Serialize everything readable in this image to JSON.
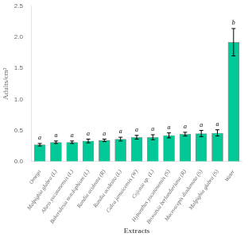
{
  "chart_data": {
    "type": "bar",
    "categories": [
      "Omega",
      "Malpighia glabra (L)",
      "Alseis yucatanensis (L)",
      "Bakeridesia notolophium (L)",
      "Randia aculeata (R)",
      "Randia aculeata (L)",
      "Calca jamaicensis (W)",
      "Cojonia sp. (L)",
      "Hybanthus yucatanensis (S)",
      "Brovatsia berlandieriana (R)",
      "Macroscepis diadamata (S)",
      "Malpighia glabra (S)",
      "Water"
    ],
    "values": [
      0.27,
      0.31,
      0.31,
      0.33,
      0.34,
      0.36,
      0.39,
      0.39,
      0.42,
      0.44,
      0.45,
      0.46,
      1.92
    ],
    "errors": [
      0.02,
      0.02,
      0.02,
      0.03,
      0.02,
      0.03,
      0.03,
      0.04,
      0.04,
      0.03,
      0.05,
      0.05,
      0.22
    ],
    "annotations": [
      "a",
      "a",
      "a",
      "a",
      "a",
      "a",
      "a",
      "a",
      "a",
      "a",
      "a",
      "a",
      "b"
    ],
    "color": "#00C896",
    "xlabel": "Extracts",
    "ylabel": "Adults/cm²",
    "ylim": [
      0.0,
      2.5
    ],
    "yticks": [
      {
        "value": 0,
        "label": "0.0"
      },
      0.5,
      {
        "value": 1,
        "label": "1.0"
      },
      1.5,
      {
        "value": 2,
        "label": "2.0"
      },
      2.5
    ],
    "grid": false
  }
}
